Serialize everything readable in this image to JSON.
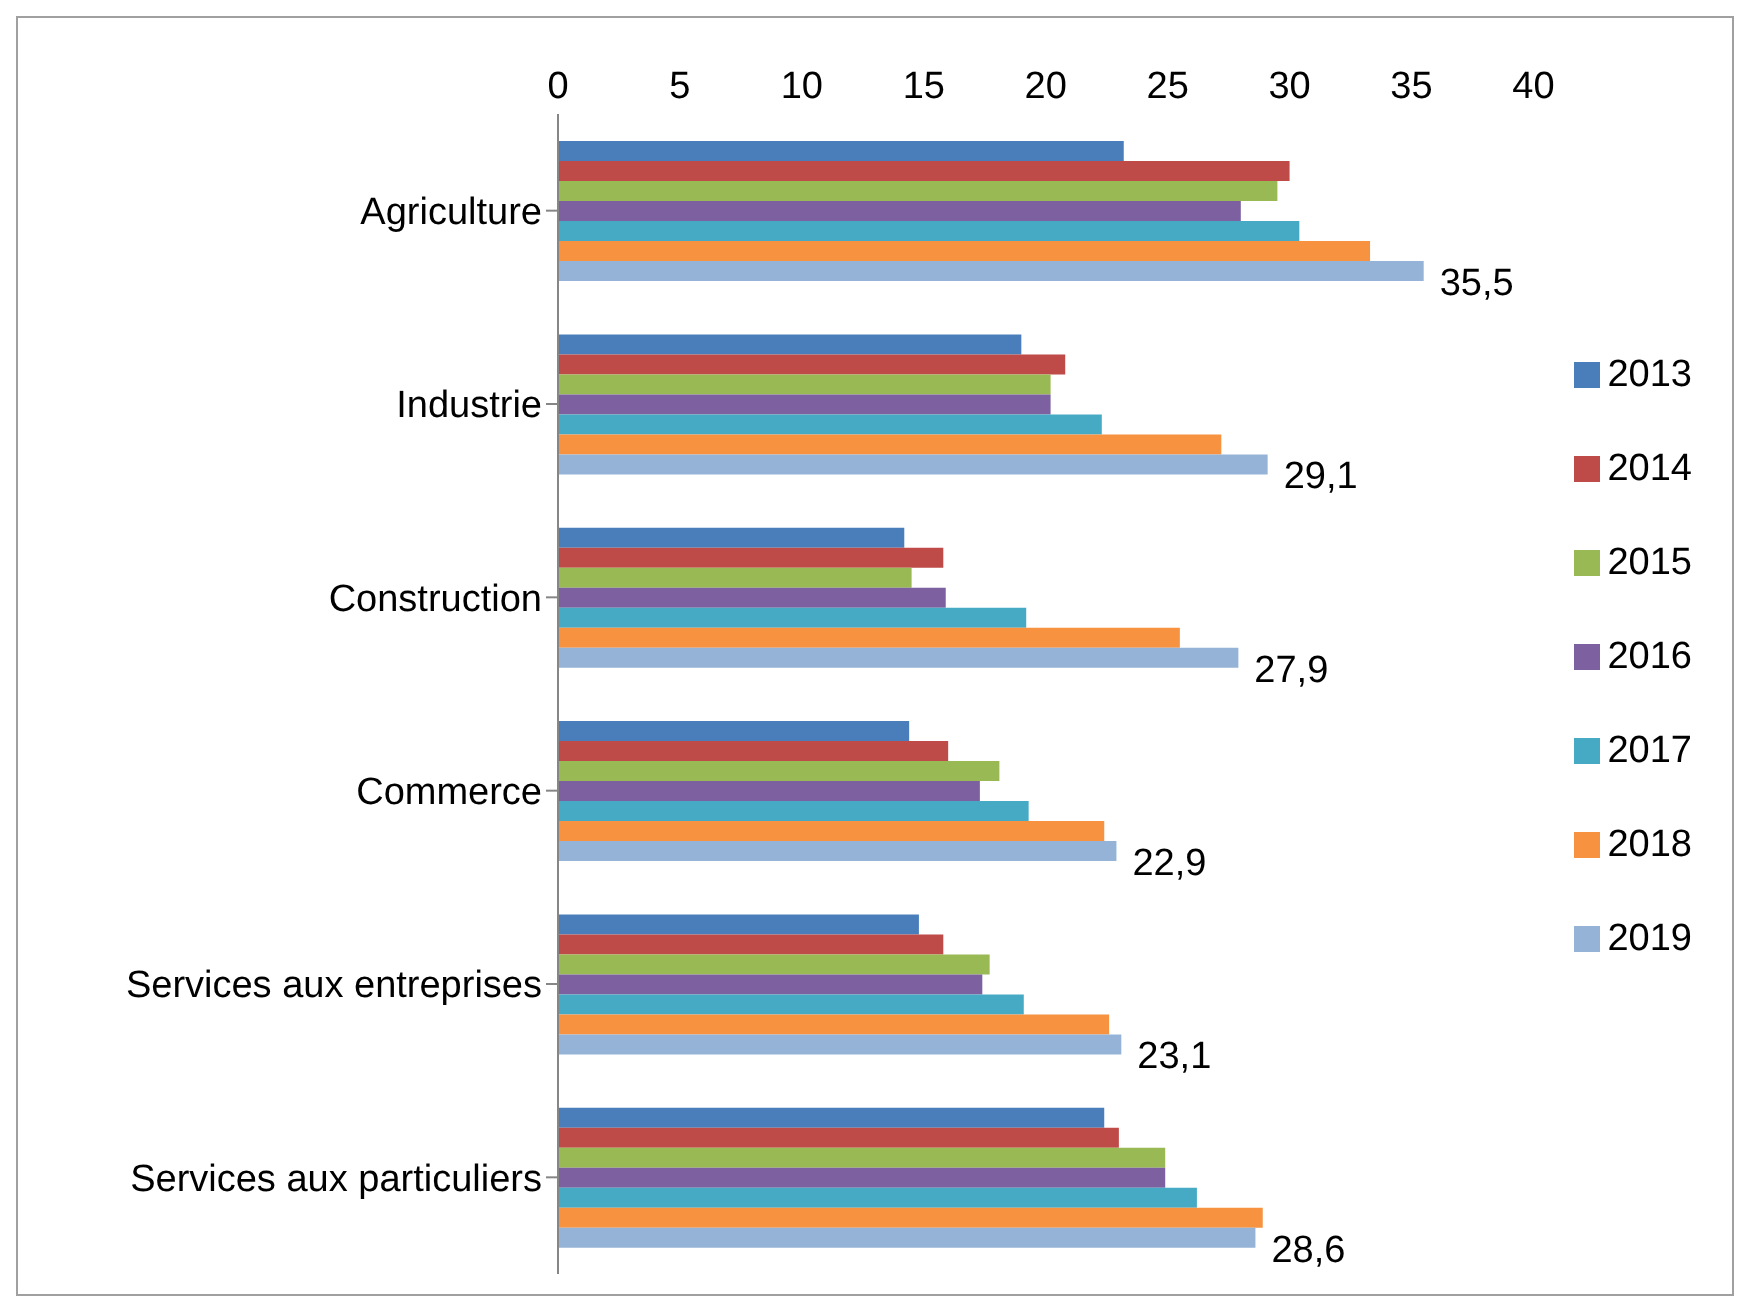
{
  "chart_data": {
    "type": "bar",
    "orientation": "horizontal",
    "categories": [
      "Agriculture",
      "Industrie",
      "Construction",
      "Commerce",
      "Services aux entreprises",
      "Services aux particuliers"
    ],
    "series": [
      {
        "name": "2013",
        "color": "#4a7ebb",
        "values": [
          23.2,
          19.0,
          14.2,
          14.4,
          14.8,
          22.4
        ]
      },
      {
        "name": "2014",
        "color": "#be4b48",
        "values": [
          30.0,
          20.8,
          15.8,
          16.0,
          15.8,
          23.0
        ]
      },
      {
        "name": "2015",
        "color": "#98b954",
        "values": [
          29.5,
          20.2,
          14.5,
          18.1,
          17.7,
          24.9
        ]
      },
      {
        "name": "2016",
        "color": "#7d60a0",
        "values": [
          28.0,
          20.2,
          15.9,
          17.3,
          17.4,
          24.9
        ]
      },
      {
        "name": "2017",
        "color": "#46aac5",
        "values": [
          30.4,
          22.3,
          19.2,
          19.3,
          19.1,
          26.2
        ]
      },
      {
        "name": "2018",
        "color": "#f69240",
        "values": [
          33.3,
          27.2,
          25.5,
          22.4,
          22.6,
          28.9
        ]
      },
      {
        "name": "2019",
        "color": "#95b3d7",
        "values": [
          35.5,
          29.1,
          27.9,
          22.9,
          23.1,
          28.6
        ],
        "value_labels": [
          "35,5",
          "29,1",
          "27,9",
          "22,9",
          "23,1",
          "28,6"
        ]
      }
    ],
    "xlim": [
      0,
      40
    ],
    "xticks": [
      0,
      5,
      10,
      15,
      20,
      25,
      30,
      35,
      40
    ],
    "legend": "right"
  }
}
